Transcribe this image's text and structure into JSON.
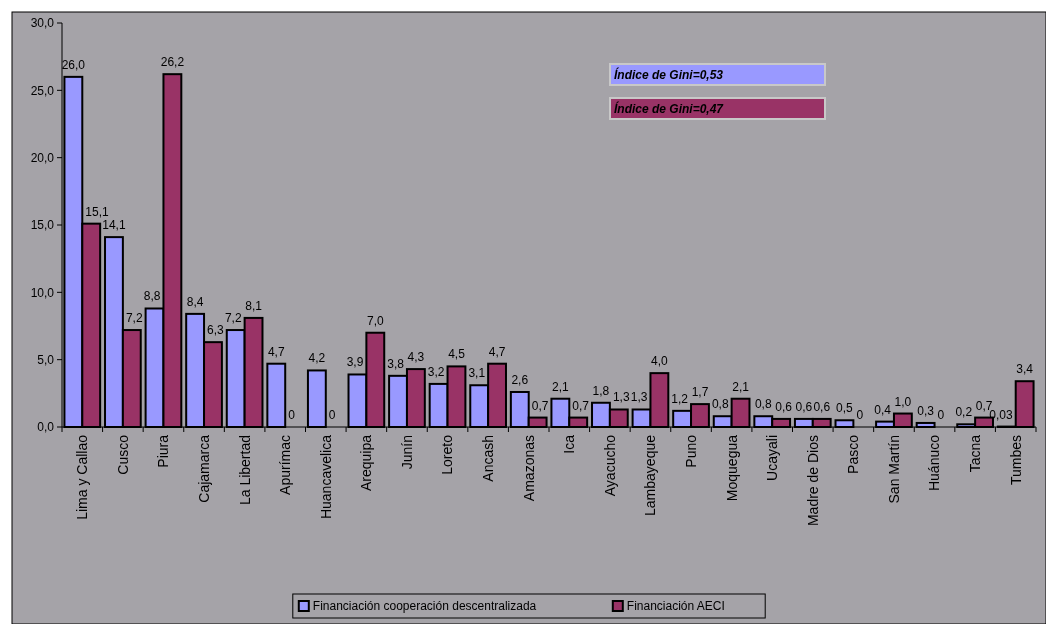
{
  "chart_data": {
    "type": "bar",
    "categories": [
      "Lima y Callao",
      "Cusco",
      "Piura",
      "Cajamarca",
      "La Libertad",
      "Apurímac",
      "Huancavelica",
      "Arequipa",
      "Junín",
      "Loreto",
      "Ancash",
      "Amazonas",
      "Ica",
      "Ayacucho",
      "Lambayeque",
      "Puno",
      "Moquegua",
      "Ucayali",
      "Madre de Dios",
      "Pasco",
      "San Martín",
      "Huánuco",
      "Tacna",
      "Tumbes"
    ],
    "series": [
      {
        "name": "Financiación cooperación descentralizada",
        "color": "#9999ff",
        "values": [
          26.0,
          14.1,
          8.8,
          8.4,
          7.2,
          4.7,
          4.2,
          3.9,
          3.8,
          3.2,
          3.1,
          2.6,
          2.1,
          1.8,
          1.3,
          1.2,
          0.8,
          0.8,
          0.6,
          0.5,
          0.4,
          0.3,
          0.2,
          0.03
        ],
        "value_labels": [
          "26,0",
          "14,1",
          "8,8",
          "8,4",
          "7,2",
          "4,7",
          "4,2",
          "3,9",
          "3,8",
          "3,2",
          "3,1",
          "2,6",
          "2,1",
          "1,8",
          "1,3",
          "1,2",
          "0,8",
          "0,8",
          "0,6",
          "0,5",
          "0,4",
          "0,3",
          "0,2",
          "0,03"
        ]
      },
      {
        "name": "Financiación AECI",
        "color": "#993366",
        "values": [
          15.1,
          7.2,
          26.2,
          6.3,
          8.1,
          0,
          0,
          7.0,
          4.3,
          4.5,
          4.7,
          0.7,
          0.7,
          1.3,
          4.0,
          1.7,
          2.1,
          0.6,
          0.6,
          0,
          1.0,
          0,
          0.7,
          3.4
        ],
        "value_labels": [
          "15,1",
          "7,2",
          "26,2",
          "6,3",
          "8,1",
          "0",
          "0",
          "7,0",
          "4,3",
          "4,5",
          "4,7",
          "0,7",
          "0,7",
          "1,3",
          "4,0",
          "1,7",
          "2,1",
          "0,6",
          "0,6",
          "0",
          "1,0",
          "0",
          "0,7",
          "3,4"
        ]
      }
    ],
    "ylim": [
      0,
      30
    ],
    "yticks": [
      {
        "value": 0,
        "label": "0,0"
      },
      {
        "value": 5,
        "label": "5,0"
      },
      {
        "value": 10,
        "label": "10,0"
      },
      {
        "value": 15,
        "label": "15,0"
      },
      {
        "value": 20,
        "label": "20,0"
      },
      {
        "value": 25,
        "label": "25,0"
      },
      {
        "value": 30,
        "label": "30,0"
      }
    ],
    "annotations": [
      "Índice de Gini=0,53",
      "Índice de Gini=0,47"
    ],
    "legend": "bottom",
    "grid": false
  }
}
